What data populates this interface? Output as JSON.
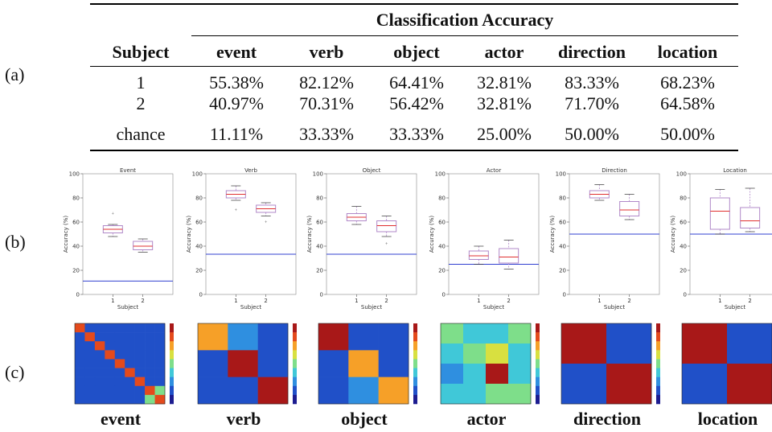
{
  "labels": {
    "a": "(a)",
    "b": "(b)",
    "c": "(c)"
  },
  "table": {
    "group_header": "Classification Accuracy",
    "subject_header": "Subject",
    "columns": [
      "event",
      "verb",
      "object",
      "actor",
      "direction",
      "location"
    ],
    "rows": [
      {
        "subject": "1",
        "values": [
          "55.38%",
          "82.12%",
          "64.41%",
          "32.81%",
          "83.33%",
          "68.23%"
        ]
      },
      {
        "subject": "2",
        "values": [
          "40.97%",
          "70.31%",
          "56.42%",
          "32.81%",
          "71.70%",
          "64.58%"
        ]
      },
      {
        "subject": "chance",
        "values": [
          "11.11%",
          "33.33%",
          "33.33%",
          "25.00%",
          "50.00%",
          "50.00%"
        ]
      }
    ]
  },
  "chart_data": [
    {
      "type": "box",
      "title": "Event",
      "xlabel": "Subject",
      "ylabel": "Accuracy (%)",
      "ylim": [
        0,
        100
      ],
      "yticks": [
        "0",
        "20",
        "40",
        "60",
        "80",
        "100"
      ],
      "categories": [
        "1",
        "2"
      ],
      "chance": 11.11,
      "boxes": [
        {
          "min": 48,
          "q1": 51,
          "median": 54,
          "q3": 57,
          "max": 58,
          "outliers": [
            67
          ]
        },
        {
          "min": 35,
          "q1": 37,
          "median": 40,
          "q3": 44,
          "max": 46,
          "outliers": []
        }
      ]
    },
    {
      "type": "box",
      "title": "Verb",
      "xlabel": "Subject",
      "ylabel": "Accuracy (%)",
      "ylim": [
        0,
        100
      ],
      "yticks": [
        "0",
        "20",
        "40",
        "60",
        "80",
        "100"
      ],
      "categories": [
        "1",
        "2"
      ],
      "chance": 33.33,
      "boxes": [
        {
          "min": 78,
          "q1": 80,
          "median": 83,
          "q3": 86,
          "max": 90,
          "outliers": [
            70
          ]
        },
        {
          "min": 65,
          "q1": 68,
          "median": 71,
          "q3": 74,
          "max": 76,
          "outliers": [
            60
          ]
        }
      ]
    },
    {
      "type": "box",
      "title": "Object",
      "xlabel": "Subject",
      "ylabel": "Accuracy (%)",
      "ylim": [
        0,
        100
      ],
      "yticks": [
        "0",
        "20",
        "40",
        "60",
        "80",
        "100"
      ],
      "categories": [
        "1",
        "2"
      ],
      "chance": 33.33,
      "boxes": [
        {
          "min": 58,
          "q1": 61,
          "median": 64,
          "q3": 67,
          "max": 73,
          "outliers": []
        },
        {
          "min": 48,
          "q1": 52,
          "median": 57,
          "q3": 61,
          "max": 65,
          "outliers": [
            42
          ]
        }
      ]
    },
    {
      "type": "box",
      "title": "Actor",
      "xlabel": "Subject",
      "ylabel": "Accuracy (%)",
      "ylim": [
        0,
        100
      ],
      "yticks": [
        "0",
        "20",
        "40",
        "60",
        "80",
        "100"
      ],
      "categories": [
        "1",
        "2"
      ],
      "chance": 25.0,
      "boxes": [
        {
          "min": 25,
          "q1": 29,
          "median": 32,
          "q3": 36,
          "max": 40,
          "outliers": []
        },
        {
          "min": 21,
          "q1": 26,
          "median": 31,
          "q3": 38,
          "max": 45,
          "outliers": []
        }
      ]
    },
    {
      "type": "box",
      "title": "Direction",
      "xlabel": "Subject",
      "ylabel": "Accuracy (%)",
      "ylim": [
        0,
        100
      ],
      "yticks": [
        "0",
        "20",
        "40",
        "60",
        "80",
        "100"
      ],
      "categories": [
        "1",
        "2"
      ],
      "chance": 50.0,
      "boxes": [
        {
          "min": 78,
          "q1": 80,
          "median": 83,
          "q3": 86,
          "max": 91,
          "outliers": []
        },
        {
          "min": 62,
          "q1": 65,
          "median": 70,
          "q3": 77,
          "max": 83,
          "outliers": []
        }
      ]
    },
    {
      "type": "box",
      "title": "Location",
      "xlabel": "Subject",
      "ylabel": "Accuracy (%)",
      "ylim": [
        0,
        100
      ],
      "yticks": [
        "0",
        "20",
        "40",
        "60",
        "80",
        "100"
      ],
      "categories": [
        "1",
        "2"
      ],
      "chance": 50.0,
      "boxes": [
        {
          "min": 50,
          "q1": 54,
          "median": 69,
          "q3": 80,
          "max": 87,
          "outliers": []
        },
        {
          "min": 52,
          "q1": 55,
          "median": 61,
          "q3": 72,
          "max": 88,
          "outliers": []
        }
      ]
    }
  ],
  "heatmaps": [
    {
      "name": "event",
      "size": 9
    },
    {
      "name": "verb",
      "size": 3
    },
    {
      "name": "object",
      "size": 3
    },
    {
      "name": "actor",
      "size": 4
    },
    {
      "name": "direction",
      "size": 2
    },
    {
      "name": "location",
      "size": 2
    }
  ],
  "colors": {
    "box": "#b088c8",
    "median": "#e03030",
    "chance": "#3040d0"
  }
}
